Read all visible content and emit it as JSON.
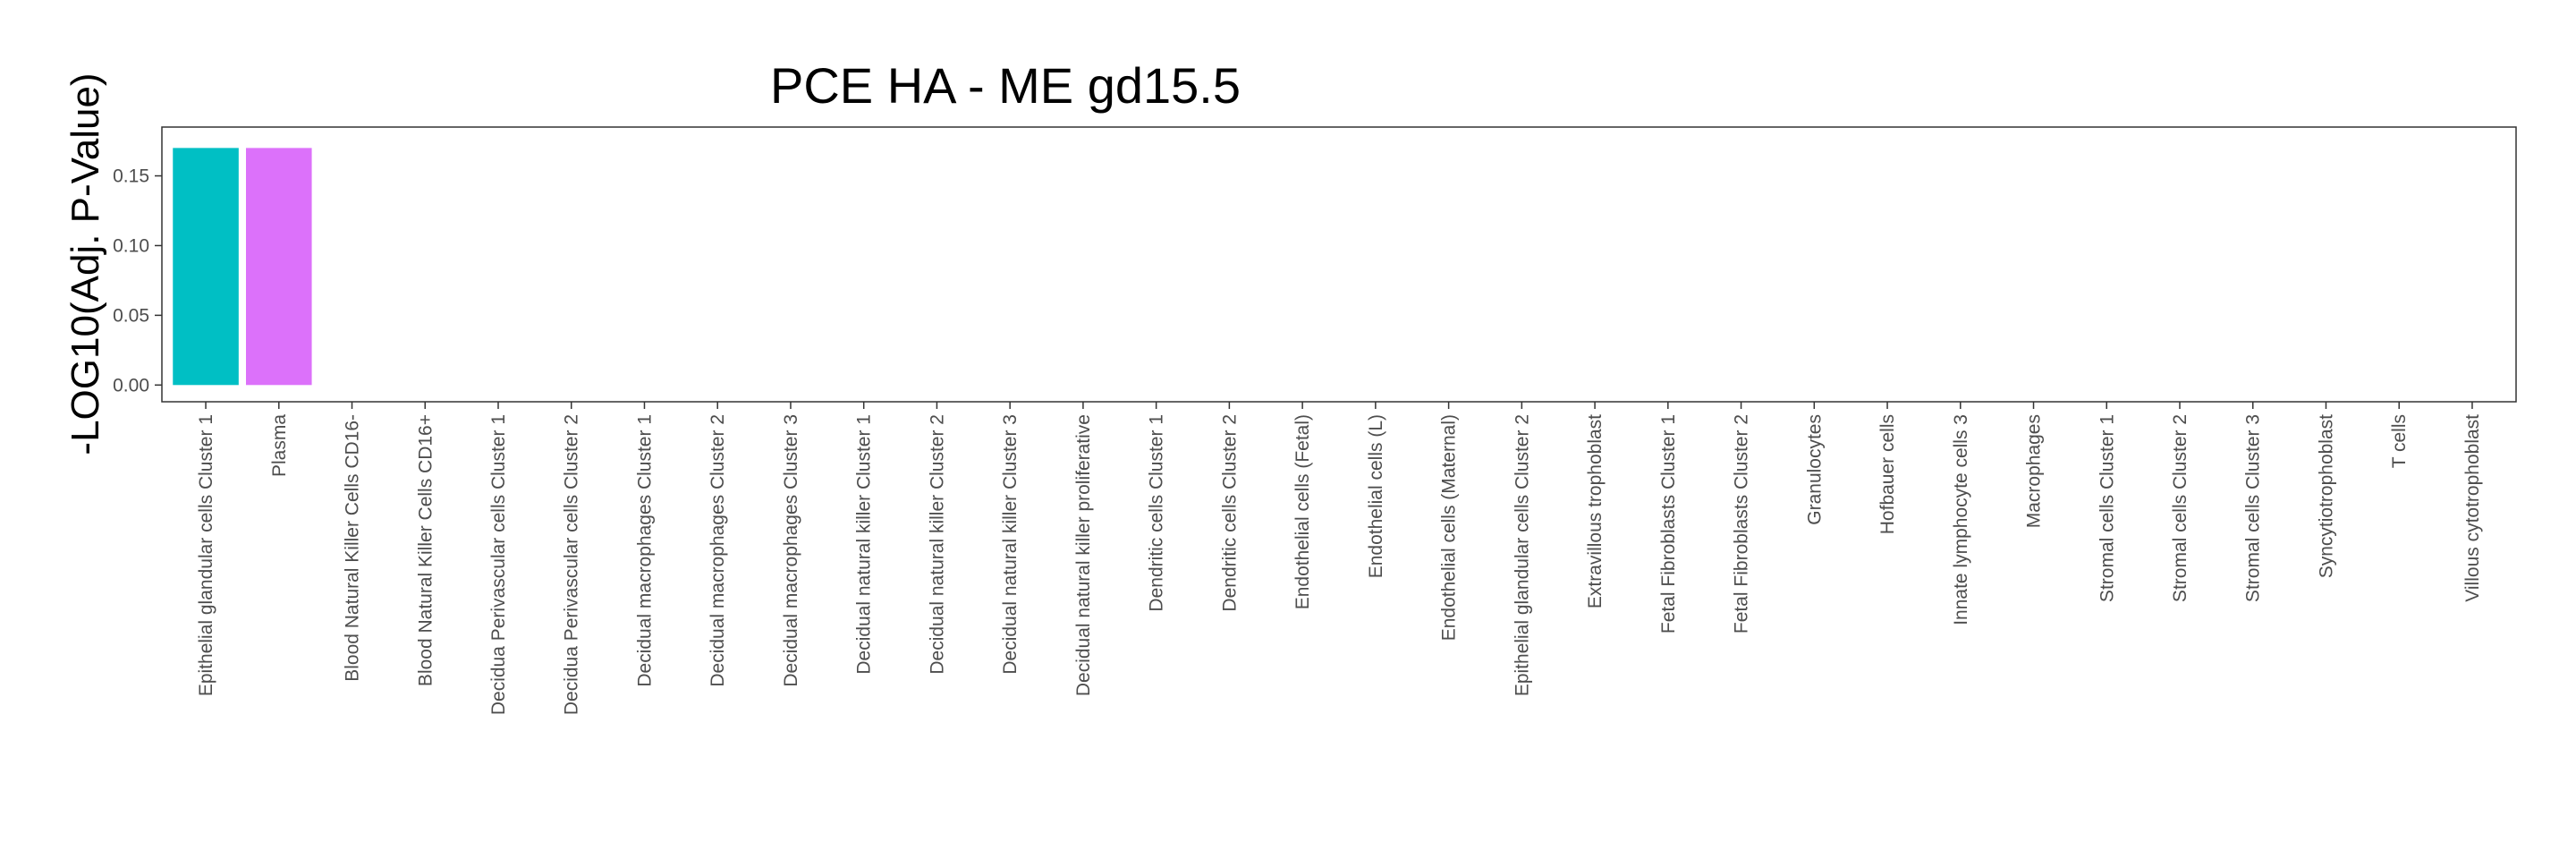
{
  "chart_data": {
    "type": "bar",
    "title": "PCE HA - ME gd15.5",
    "xlabel": "",
    "ylabel": "-LOG10(Adj. P-Value)",
    "ylim": [
      -0.012,
      0.185
    ],
    "yticks": [
      0.0,
      0.05,
      0.1,
      0.15
    ],
    "ytick_labels": [
      "0.00",
      "0.05",
      "0.10",
      "0.15"
    ],
    "grid": false,
    "legend": "none",
    "categories": [
      "Epithelial glandular cells Cluster 1",
      "Plasma",
      "Blood Natural Killer Cells CD16-",
      "Blood Natural Killer Cells CD16+",
      "Decidua Perivascular cells Cluster 1",
      "Decidua Perivascular cells Cluster 2",
      "Decidual macrophages Cluster 1",
      "Decidual macrophages Cluster 2",
      "Decidual macrophages Cluster 3",
      "Decidual natural killer Cluster 1",
      "Decidual natural killer Cluster 2",
      "Decidual natural killer Cluster 3",
      "Decidual natural killer proliferative",
      "Dendritic cells Cluster 1",
      "Dendritic cells Cluster 2",
      "Endothelial cells (Fetal)",
      "Endothelial cells (L)",
      "Endothelial cells (Maternal)",
      "Epithelial glandular cells Cluster 2",
      "Extravillous trophoblast",
      "Fetal Fibroblasts Cluster 1",
      "Fetal Fibroblasts Cluster 2",
      "Granulocytes",
      "Hofbauer cells",
      "Innate lymphocyte cells 3",
      "Macrophages",
      "Stromal cells Cluster 1",
      "Stromal cells Cluster 2",
      "Stromal cells Cluster 3",
      "Syncytiotrophoblast",
      "T cells",
      "Villous cytotrophoblast"
    ],
    "values": [
      0.17,
      0.17,
      0,
      0,
      0,
      0,
      0,
      0,
      0,
      0,
      0,
      0,
      0,
      0,
      0,
      0,
      0,
      0,
      0,
      0,
      0,
      0,
      0,
      0,
      0,
      0,
      0,
      0,
      0,
      0,
      0,
      0
    ],
    "bar_colors": [
      "#00BFC4",
      "#DC71FA"
    ]
  }
}
